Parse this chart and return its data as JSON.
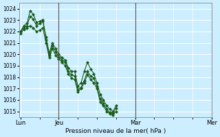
{
  "bg_color": "#cceeff",
  "grid_color": "#ffffff",
  "line_color": "#1a5c1a",
  "marker_color": "#1a5c1a",
  "xlabel": "Pression niveau de la mer( hPa )",
  "ylim": [
    1014.5,
    1024.5
  ],
  "yticks": [
    1015,
    1016,
    1017,
    1018,
    1019,
    1020,
    1021,
    1022,
    1023,
    1024
  ],
  "xtick_labels": [
    "Lun",
    "Jeu",
    "Mar",
    "Mer"
  ],
  "xtick_positions": [
    0,
    12,
    36,
    60
  ],
  "vline_positions": [
    12,
    36,
    60
  ],
  "series": [
    [
      1022.0,
      1022.5,
      1022.7,
      1023.8,
      1023.5,
      1022.8,
      1022.9,
      1023.0,
      1021.5,
      1020.1,
      1021.0,
      1020.5,
      1020.0,
      1019.7,
      1019.5,
      1018.8,
      1018.5,
      1018.5,
      1017.2,
      1017.5,
      1018.5,
      1019.3,
      1018.7,
      1018.3,
      1017.5,
      1016.5,
      1016.0,
      1015.5,
      1015.2,
      1015.0,
      1015.5
    ],
    [
      1022.0,
      1022.3,
      1022.5,
      1023.3,
      1023.1,
      1022.5,
      1022.7,
      1022.9,
      1021.3,
      1019.9,
      1020.8,
      1020.2,
      1019.8,
      1019.5,
      1019.3,
      1018.5,
      1018.2,
      1018.1,
      1016.9,
      1017.1,
      1017.7,
      1018.5,
      1018.1,
      1017.9,
      1017.2,
      1016.1,
      1015.7,
      1015.2,
      1014.9,
      1014.8,
      1015.3
    ],
    [
      1021.8,
      1022.2,
      1022.3,
      1022.5,
      1022.3,
      1022.0,
      1022.1,
      1022.3,
      1021.0,
      1019.7,
      1020.5,
      1019.9,
      1019.6,
      1019.3,
      1019.0,
      1018.3,
      1017.9,
      1017.8,
      1016.7,
      1017.0,
      1017.5,
      1018.2,
      1017.8,
      1017.5,
      1017.0,
      1015.8,
      1015.5,
      1015.0,
      1014.8,
      1014.7,
      1015.0
    ]
  ]
}
